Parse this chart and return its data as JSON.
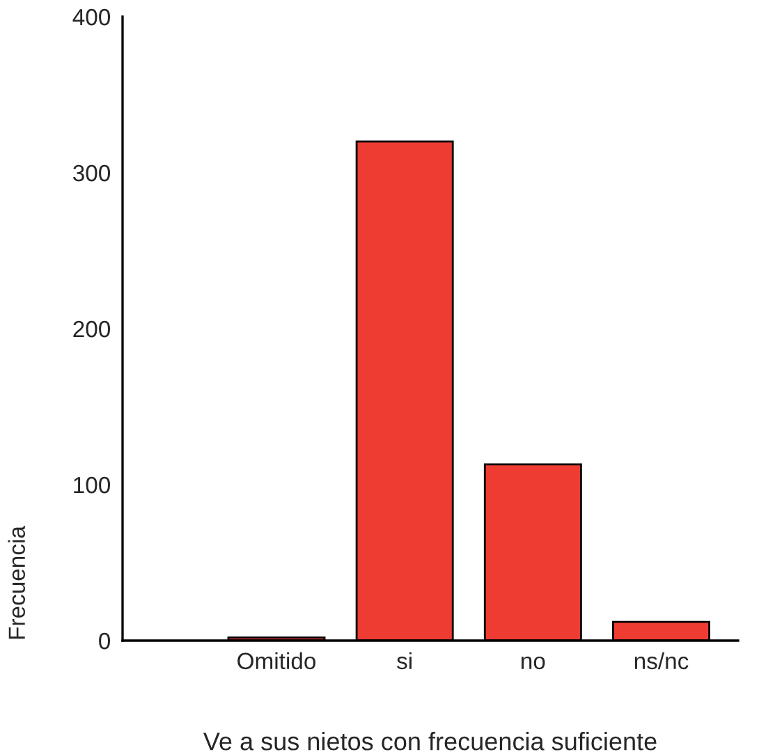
{
  "chart_data": {
    "type": "bar",
    "xlabel": "Ve a sus nietos con frecuencia suficiente",
    "ylabel": "Frecuencia",
    "categories": [
      "Omitido",
      "si",
      "no",
      "ns/nc"
    ],
    "values": [
      2,
      320,
      113,
      12
    ],
    "color": "#ee3c33",
    "ylim": [
      0,
      400
    ],
    "yticks": [
      0,
      100,
      200,
      300,
      400
    ],
    "grid": false,
    "legend": false
  }
}
